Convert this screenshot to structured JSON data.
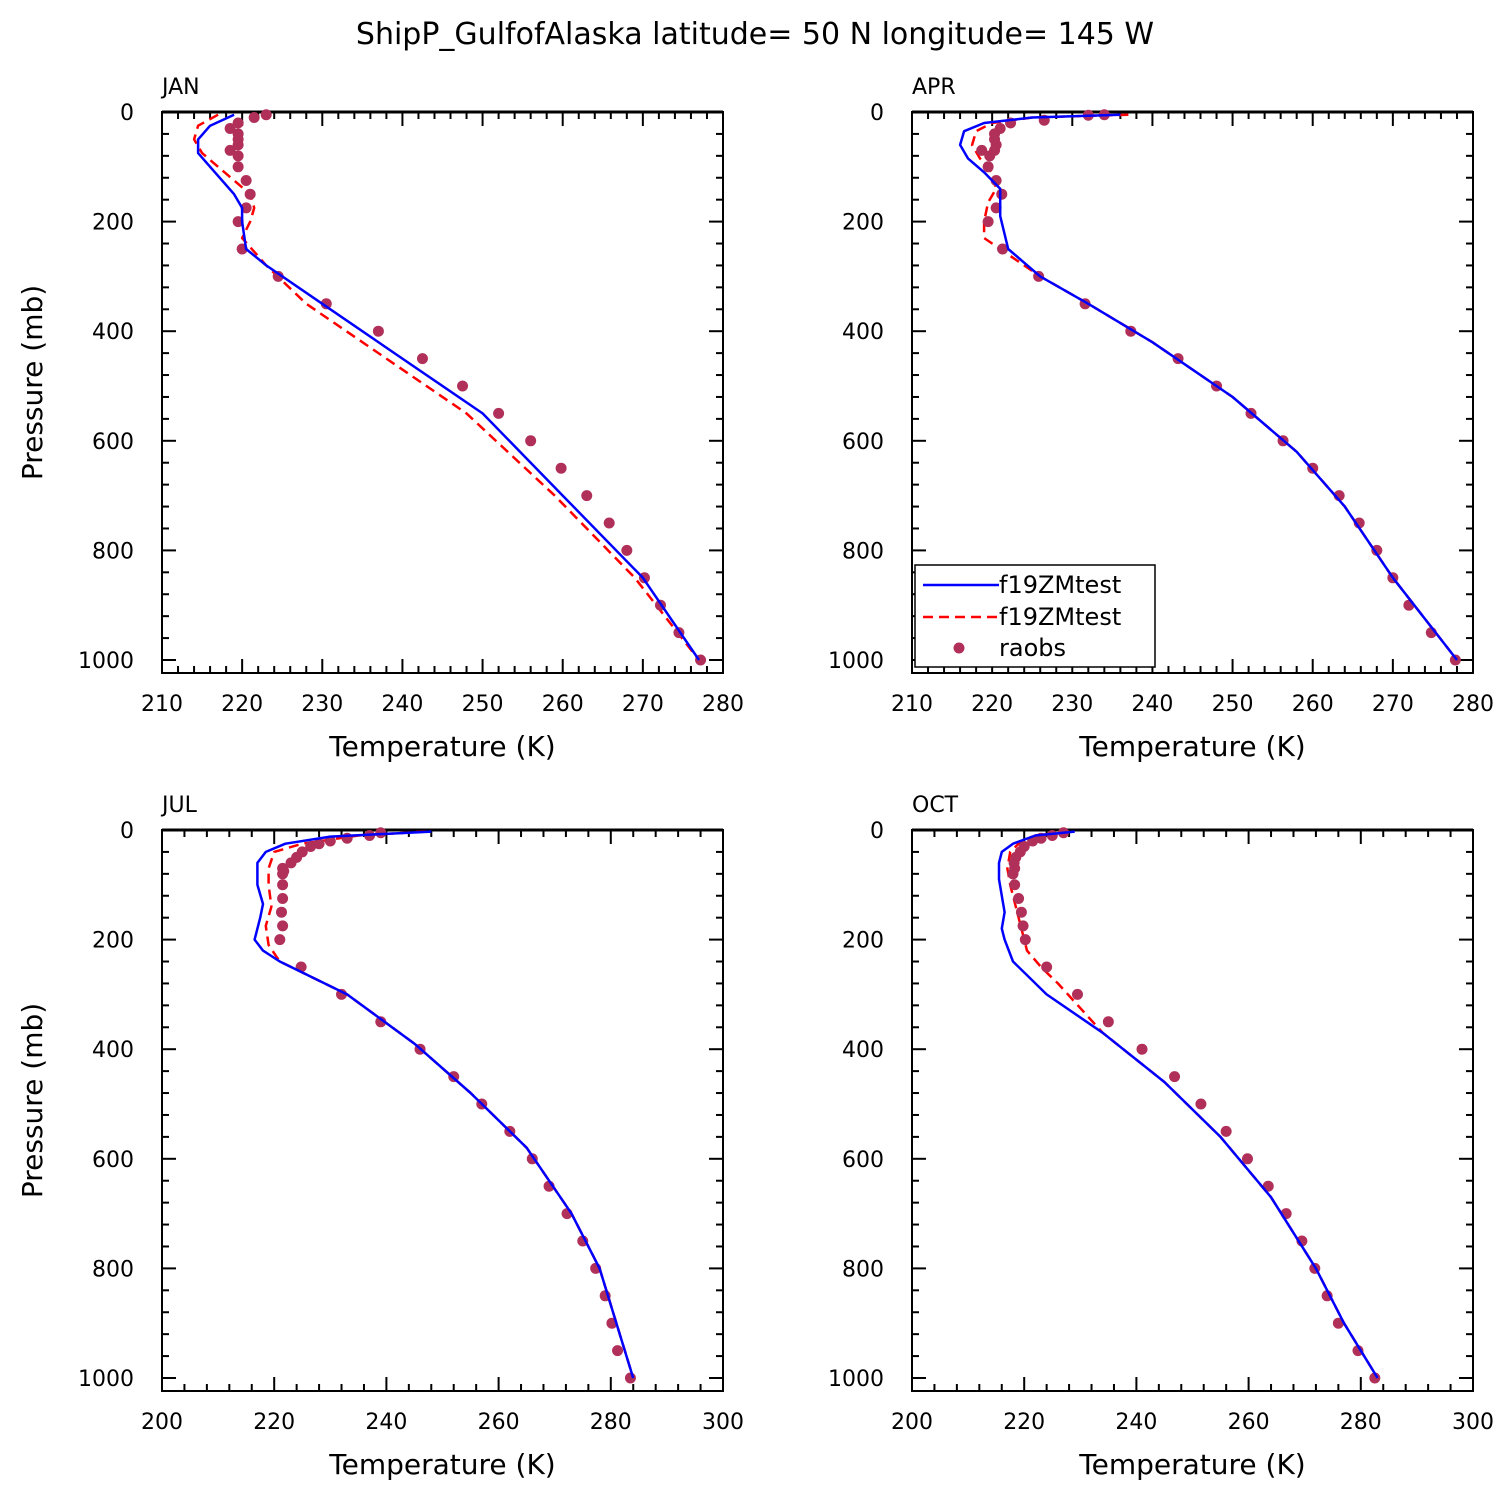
{
  "chart_data": {
    "type": "line",
    "title": "ShipP_GulfofAlaska  latitude= 50 N longitude= 145 W",
    "colors": {
      "model_1": "#0000ff",
      "model_2": "#ff0000",
      "obs": "#b0305a"
    },
    "legend": {
      "placement": "bottom-left of APR panel",
      "entries": [
        "f19ZMtest",
        "f19ZMtest",
        "raobs"
      ]
    },
    "panels": [
      {
        "name": "JAN",
        "xlabel": "Temperature (K)",
        "ylabel": "Pressure (mb)",
        "xlim": [
          210,
          280
        ],
        "ylim": [
          1000,
          0
        ],
        "xticks": [
          210,
          220,
          230,
          240,
          250,
          260,
          270,
          280
        ],
        "yticks": [
          0,
          200,
          400,
          600,
          800,
          1000
        ],
        "show_ylabel": true,
        "series": [
          {
            "name": "f19ZMtest",
            "style": "solid",
            "t": [
              219,
              216,
              214.5,
              214.5,
              216,
              219,
              220,
              220,
              220.5,
              223,
              230,
              240,
              250,
              260,
              270,
              277
            ],
            "p": [
              5,
              25,
              50,
              75,
              100,
              150,
              175,
              200,
              250,
              280,
              350,
              450,
              550,
              700,
              850,
              1000
            ]
          },
          {
            "name": "f19ZMtest",
            "style": "dashed",
            "t": [
              217,
              214.5,
              214,
              215,
              217,
              221,
              221.5,
              221,
              220,
              223,
              228,
              238,
              248,
              259,
              269,
              277
            ],
            "p": [
              5,
              25,
              50,
              75,
              100,
              150,
              175,
              200,
              230,
              280,
              350,
              450,
              550,
              700,
              850,
              1000
            ]
          },
          {
            "name": "raobs",
            "style": "points",
            "t": [
              223,
              221.5,
              219.5,
              218.5,
              219.5,
              219.5,
              219.5,
              218.5,
              219.5,
              219.5,
              220.5,
              221,
              220.5,
              219.5,
              220,
              224.5,
              230.5,
              237,
              242.5,
              247.5,
              252,
              256,
              259.8,
              263,
              265.8,
              268,
              270.2,
              272.2,
              274.5,
              277.2
            ],
            "p": [
              5,
              10,
              20,
              30,
              40,
              50,
              60,
              70,
              80,
              100,
              125,
              150,
              175,
              200,
              250,
              300,
              350,
              400,
              450,
              500,
              550,
              600,
              650,
              700,
              750,
              800,
              850,
              900,
              950,
              1000
            ]
          }
        ]
      },
      {
        "name": "APR",
        "xlabel": "Temperature (K)",
        "ylabel": "Pressure (mb)",
        "xlim": [
          210,
          280
        ],
        "ylim": [
          1000,
          0
        ],
        "xticks": [
          210,
          220,
          230,
          240,
          250,
          260,
          270,
          280
        ],
        "yticks": [
          0,
          200,
          400,
          600,
          800,
          1000
        ],
        "show_ylabel": false,
        "series": [
          {
            "name": "f19ZMtest",
            "style": "solid",
            "t": [
              236,
              225,
              219,
              216.5,
              216,
              217,
              219,
              221,
              221,
              221,
              222,
              226,
              232,
              240,
              250,
              258,
              264,
              270,
              278
            ],
            "p": [
              5,
              10,
              20,
              35,
              60,
              85,
              110,
              140,
              165,
              190,
              250,
              300,
              350,
              420,
              520,
              620,
              720,
              850,
              1000
            ]
          },
          {
            "name": "f19ZMtest",
            "style": "dashed",
            "t": [
              237,
              225,
              220,
              218,
              217.5,
              218.5,
              220,
              220.5,
              219.5,
              219,
              219,
              222,
              226,
              232,
              240,
              250,
              258,
              264,
              270,
              278
            ],
            "p": [
              5,
              10,
              20,
              35,
              60,
              85,
              110,
              140,
              165,
              200,
              230,
              260,
              300,
              350,
              420,
              520,
              620,
              720,
              850,
              1000
            ]
          },
          {
            "name": "raobs",
            "style": "points",
            "t": [
              234,
              232,
              226.5,
              222.3,
              221,
              220.3,
              220.3,
              220.5,
              220.3,
              218.7,
              219.7,
              219.5,
              220.5,
              221.2,
              220.5,
              219.5,
              221.3,
              225.8,
              231.6,
              237.3,
              243.2,
              248,
              252.3,
              256.3,
              260,
              263.3,
              265.8,
              268,
              270,
              272,
              274.8,
              277.8
            ],
            "p": [
              5,
              6,
              15,
              20,
              30,
              40,
              50,
              60,
              70,
              70,
              80,
              100,
              125,
              150,
              175,
              200,
              250,
              300,
              350,
              400,
              450,
              500,
              550,
              600,
              650,
              700,
              750,
              800,
              850,
              900,
              950,
              1000
            ]
          }
        ]
      },
      {
        "name": "JUL",
        "xlabel": "Temperature (K)",
        "ylabel": "Pressure (mb)",
        "xlim": [
          200,
          300
        ],
        "ylim": [
          1000,
          0
        ],
        "xticks": [
          200,
          220,
          240,
          260,
          280,
          300
        ],
        "yticks": [
          0,
          200,
          400,
          600,
          800,
          1000
        ],
        "show_ylabel": true,
        "series": [
          {
            "name": "f19ZMtest",
            "style": "solid",
            "t": [
              248,
              238,
              230,
              222,
              218.5,
              217,
              217,
              218,
              217.5,
              216.5,
              218,
              221,
              233,
              245,
              255,
              265,
              273,
              278,
              281,
              284
            ],
            "p": [
              3,
              8,
              12,
              25,
              40,
              60,
              100,
              135,
              160,
              200,
              220,
              240,
              300,
              390,
              480,
              580,
              700,
              800,
              900,
              1000
            ]
          },
          {
            "name": "f19ZMtest",
            "style": "dashed",
            "t": [
              247,
              235,
              225,
              220,
              219,
              219,
              219.5,
              218.5,
              219,
              221,
              233,
              245,
              255,
              265,
              273,
              278,
              281,
              284
            ],
            "p": [
              3,
              10,
              25,
              40,
              70,
              100,
              140,
              175,
              210,
              240,
              300,
              390,
              480,
              580,
              700,
              800,
              900,
              1000
            ]
          },
          {
            "name": "raobs",
            "style": "points",
            "t": [
              239,
              237,
              233,
              230,
              228,
              226.5,
              225,
              224,
              223,
              221.5,
              221.7,
              221.5,
              221.5,
              221.5,
              221.3,
              221.5,
              221,
              224.8,
              232,
              239,
              246,
              252,
              257,
              262,
              266,
              269,
              272.2,
              275,
              277.3,
              279,
              280.2,
              281.2,
              283.5
            ],
            "p": [
              5,
              10,
              15,
              20,
              25,
              30,
              40,
              50,
              60,
              70,
              75,
              80,
              100,
              125,
              150,
              175,
              200,
              250,
              300,
              350,
              400,
              450,
              500,
              550,
              600,
              650,
              700,
              750,
              800,
              850,
              900,
              950,
              1000
            ]
          }
        ]
      },
      {
        "name": "OCT",
        "xlabel": "Temperature (K)",
        "ylabel": "Pressure (mb)",
        "xlim": [
          200,
          300
        ],
        "ylim": [
          1000,
          0
        ],
        "xticks": [
          200,
          220,
          240,
          260,
          280,
          300
        ],
        "yticks": [
          0,
          200,
          400,
          600,
          800,
          1000
        ],
        "show_ylabel": false,
        "series": [
          {
            "name": "f19ZMtest",
            "style": "solid",
            "t": [
              229,
              222,
              218,
              216,
              215.5,
              215.5,
              216,
              216.5,
              216,
              216.5,
              218,
              224,
              234,
              245,
              255,
              264,
              272,
              277,
              283
            ],
            "p": [
              3,
              10,
              25,
              40,
              60,
              90,
              120,
              150,
              180,
              200,
              240,
              300,
              370,
              460,
              560,
              670,
              800,
              900,
              1000
            ]
          },
          {
            "name": "f19ZMtest",
            "style": "dashed",
            "t": [
              228,
              222,
              219,
              217.5,
              217,
              217.5,
              218.5,
              219.5,
              220.5,
              223,
              226,
              234,
              245,
              255,
              264,
              272,
              277,
              283
            ],
            "p": [
              3,
              10,
              25,
              40,
              70,
              100,
              140,
              180,
              220,
              250,
              280,
              370,
              460,
              560,
              670,
              800,
              900,
              1000
            ]
          },
          {
            "name": "raobs",
            "style": "points",
            "t": [
              227,
              225,
              223,
              221.5,
              220,
              219.3,
              218.5,
              218.2,
              218.3,
              218,
              218.3,
              219,
              219.5,
              219.8,
              220.2,
              224,
              229.5,
              235,
              241,
              246.8,
              251.5,
              256,
              259.8,
              263.5,
              266.7,
              269.5,
              271.8,
              274,
              276,
              279.5,
              282.5
            ],
            "p": [
              5,
              10,
              15,
              20,
              30,
              40,
              50,
              60,
              70,
              80,
              100,
              125,
              150,
              175,
              200,
              250,
              300,
              350,
              400,
              450,
              500,
              550,
              600,
              650,
              700,
              750,
              800,
              850,
              900,
              950,
              1000
            ]
          }
        ]
      }
    ]
  }
}
